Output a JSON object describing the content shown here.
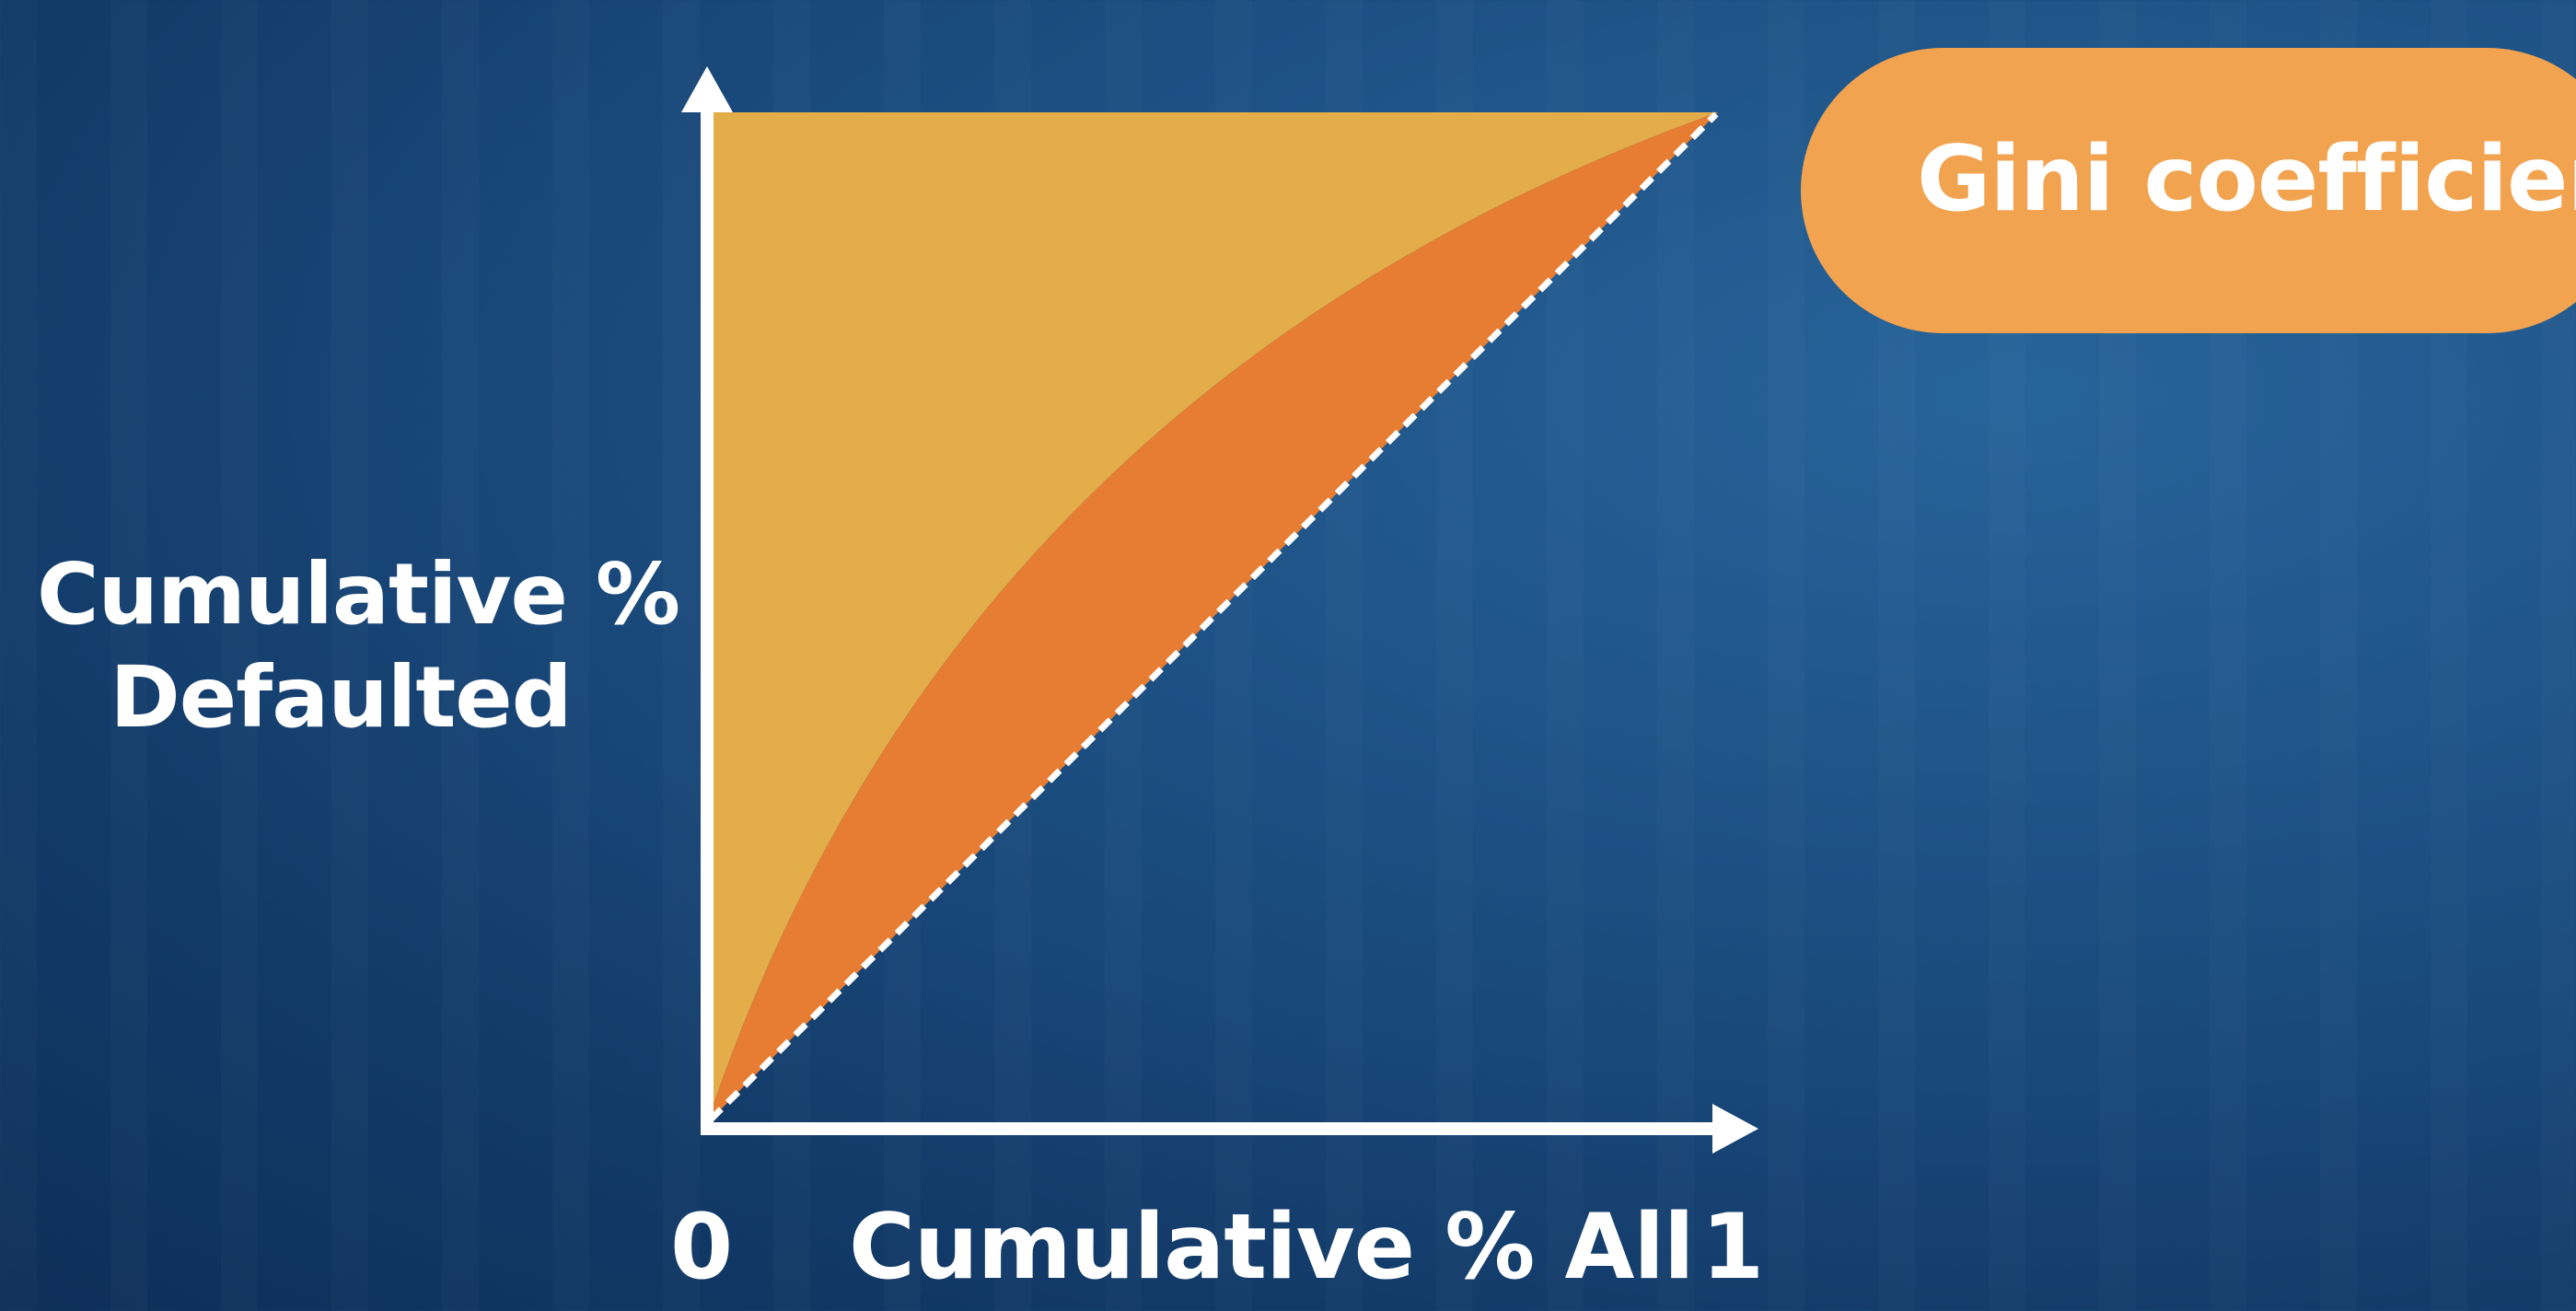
{
  "diagram": {
    "y_axis_label_lines": [
      "Cumulative %",
      "Defaulted"
    ],
    "x_axis_label": "Cumulative % All",
    "x_tick_start": "0",
    "x_tick_end": "1",
    "callout_label": "Gini coefficient",
    "colors": {
      "background": "#1c4f82",
      "upper_region": "#e3ad4a",
      "gini_region": "#e67d33",
      "axis": "#ffffff",
      "diagonal": "#ffffff",
      "callout": "#f2a350"
    },
    "regions": [
      "upper-region",
      "gini-area-region"
    ],
    "curve": "concave model curve from origin to top-right",
    "baseline": "dashed random-model diagonal"
  }
}
